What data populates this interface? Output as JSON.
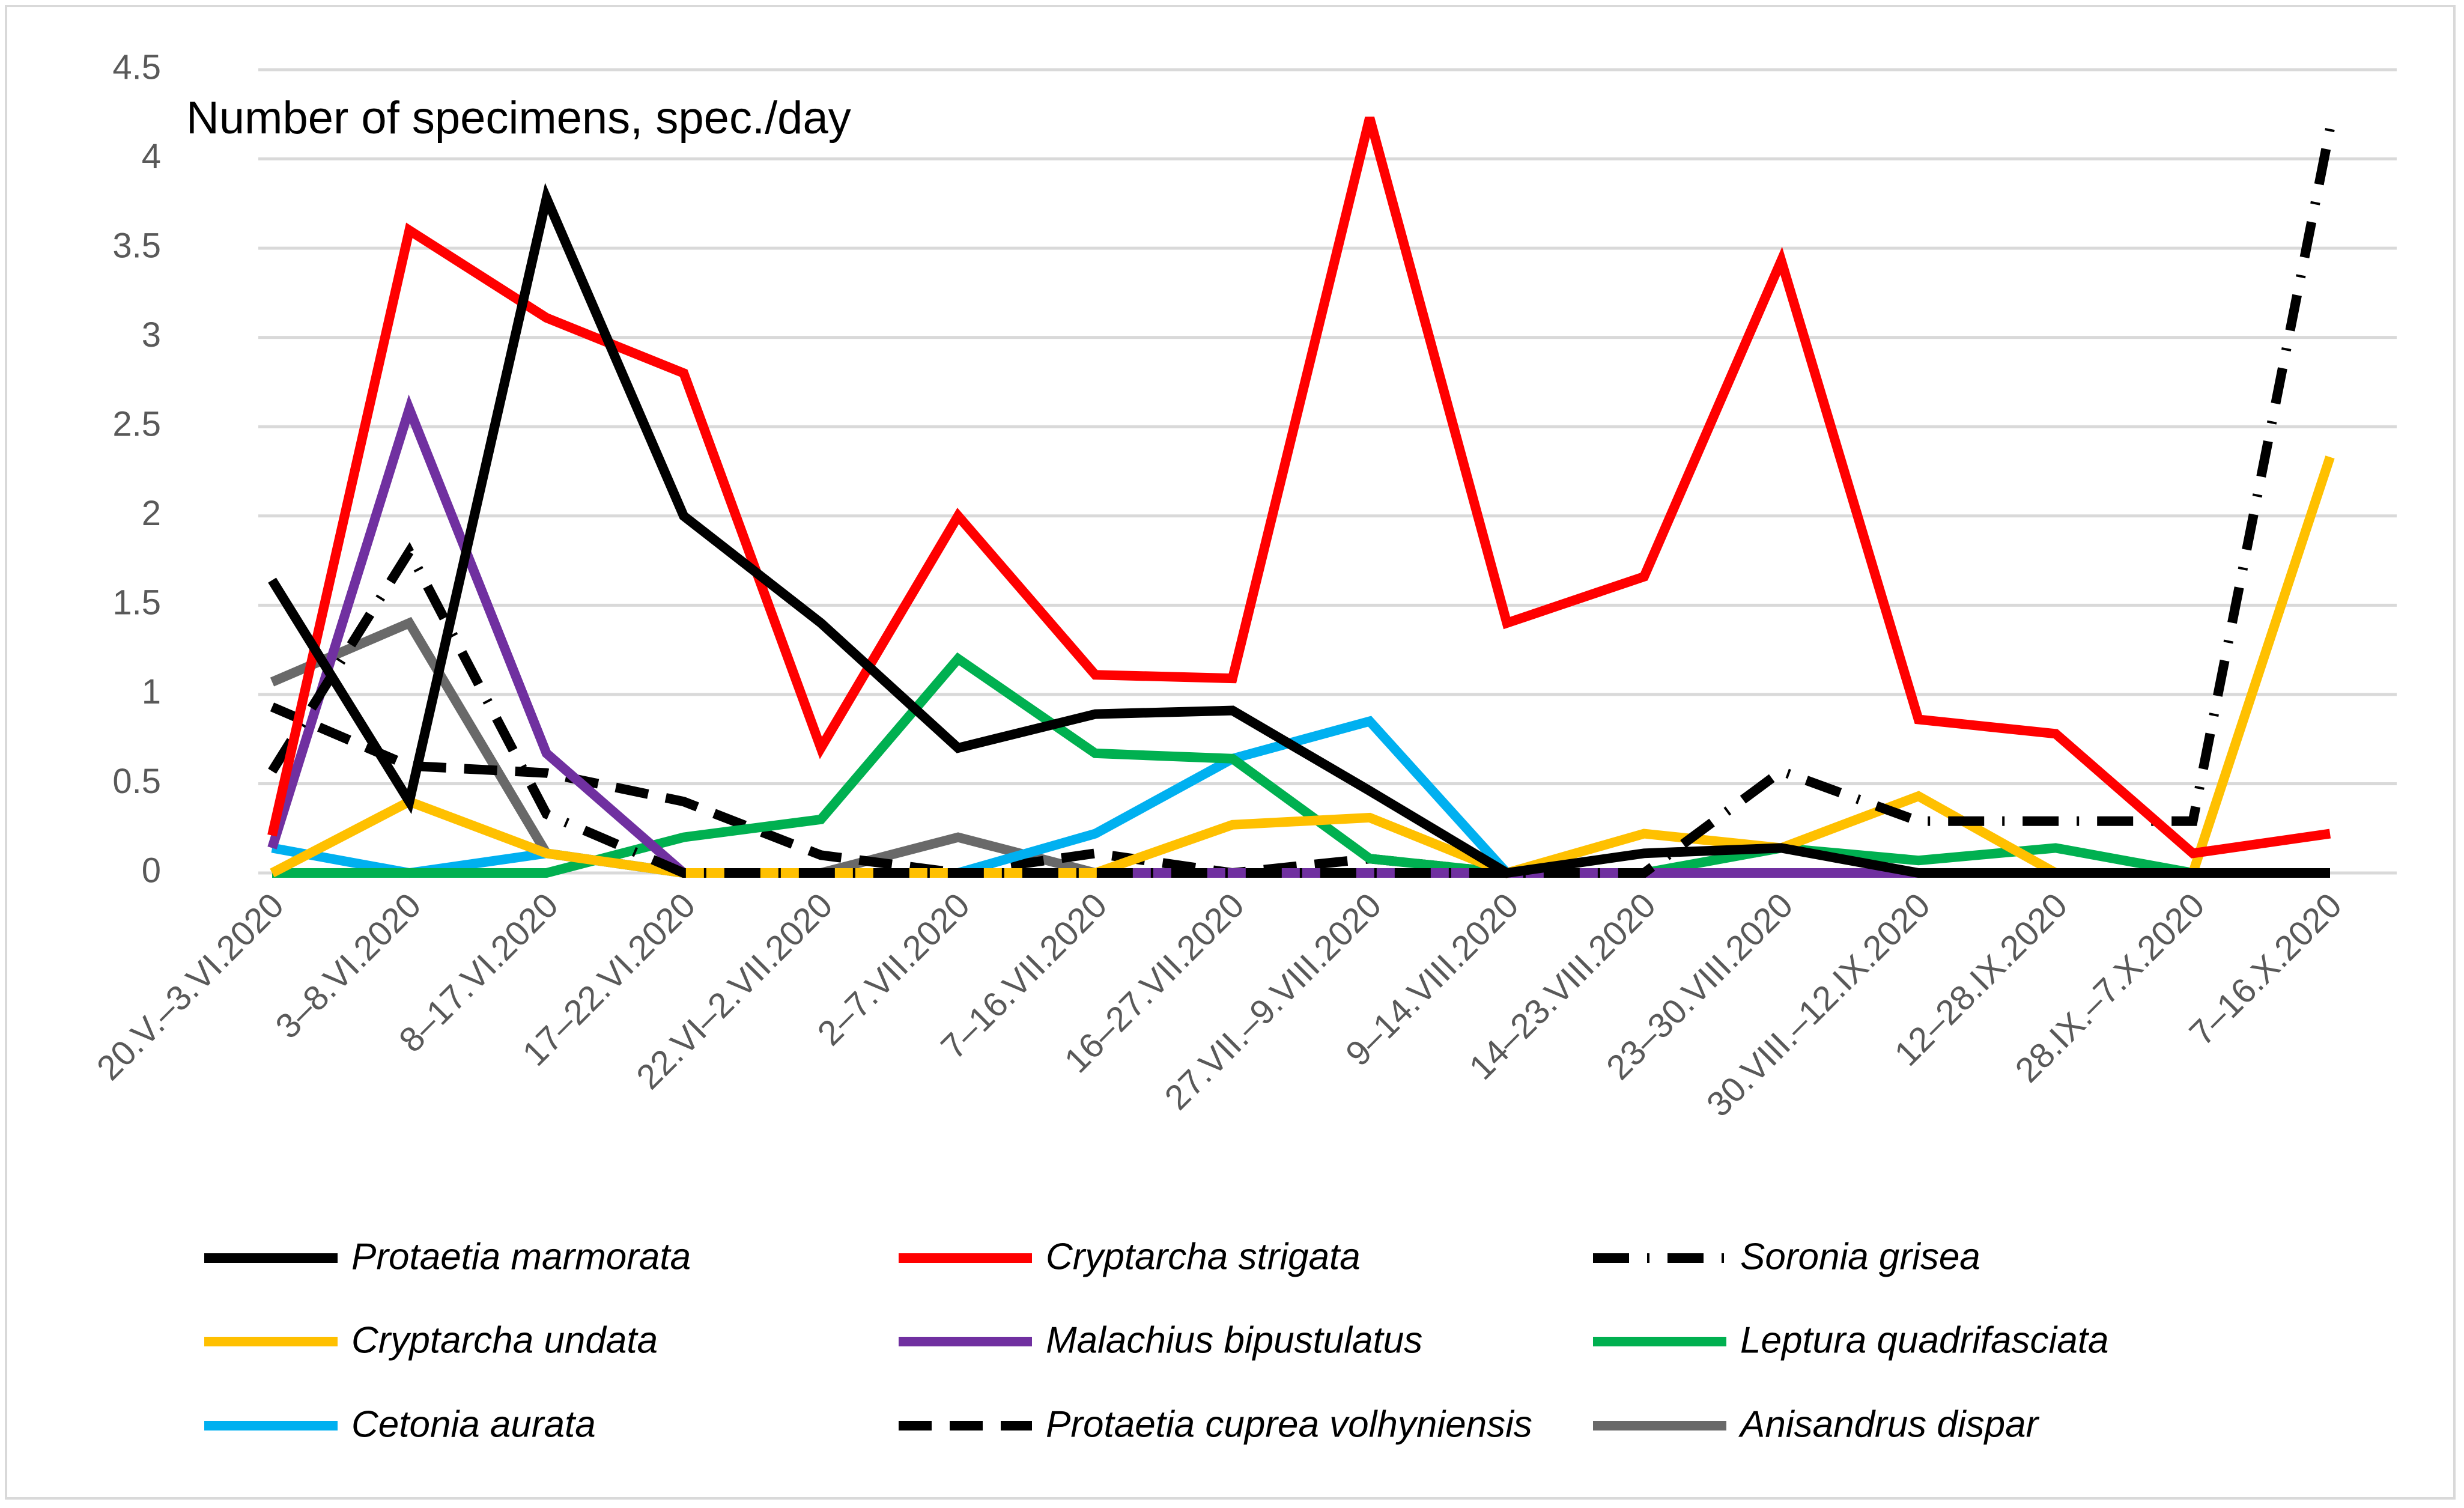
{
  "chart_data": {
    "type": "line",
    "title": "",
    "ylabel": "Number of specimens, spec./day",
    "xlabel": "",
    "ylim": [
      0,
      4.5
    ],
    "yticks": [
      "0",
      "0.5",
      "1",
      "1.5",
      "2",
      "2.5",
      "3",
      "3.5",
      "4",
      "4.5"
    ],
    "grid": true,
    "legend_position": "bottom",
    "categories": [
      "20.V.–3.VI.2020",
      "3–8.VI.2020",
      "8–17.VI.2020",
      "17–22.VI.2020",
      "22.VI–2.VII.2020",
      "2–7.VII.2020",
      "7–16.VII.2020",
      "16–27.VII.2020",
      "27.VII.–9.VIII.2020",
      "9–14.VIII.2020",
      "14–23.VIII.2020",
      "23–30.VIII.2020",
      "30.VIII.–12.IX.2020",
      "12–28.IX.2020",
      "28.IX.–7.X.2020",
      "7–16.X.2020"
    ],
    "series": [
      {
        "name": "Protaetia marmorata",
        "color": "#000000",
        "dash": "solid",
        "values": [
          1.64,
          0.4,
          3.78,
          2.0,
          1.4,
          0.7,
          0.89,
          0.91,
          0.46,
          0.0,
          0.11,
          0.14,
          0.0,
          0.0,
          0.0,
          0.0
        ]
      },
      {
        "name": "Cryptarcha strigata",
        "color": "#ff0000",
        "dash": "solid",
        "values": [
          0.21,
          3.6,
          3.11,
          2.8,
          0.7,
          2.0,
          1.11,
          1.09,
          4.23,
          1.4,
          1.66,
          3.43,
          0.86,
          0.78,
          0.11,
          0.22
        ]
      },
      {
        "name": "Soronia grisea",
        "color": "#000000",
        "dash": "dashdot",
        "values": [
          0.57,
          1.8,
          0.33,
          0.0,
          0.0,
          0.0,
          0.0,
          0.0,
          0.0,
          0.0,
          0.0,
          0.57,
          0.29,
          0.29,
          0.29,
          4.17
        ]
      },
      {
        "name": "Cryptarcha undata",
        "color": "#ffc000",
        "dash": "solid",
        "values": [
          0.0,
          0.4,
          0.11,
          0.0,
          0.0,
          0.0,
          0.0,
          0.27,
          0.31,
          0.0,
          0.22,
          0.14,
          0.43,
          0.0,
          0.0,
          2.33
        ]
      },
      {
        "name": "Malachius bipustulatus",
        "color": "#7030a0",
        "dash": "solid",
        "values": [
          0.14,
          2.6,
          0.67,
          0.0,
          0.0,
          0.0,
          0.0,
          0.0,
          0.0,
          0.0,
          0.0,
          0.0,
          0.0,
          0.0,
          0.0,
          0.0
        ]
      },
      {
        "name": "Leptura quadrifasciata",
        "color": "#00b050",
        "dash": "solid",
        "values": [
          0.0,
          0.0,
          0.0,
          0.2,
          0.3,
          1.2,
          0.67,
          0.64,
          0.08,
          0.0,
          0.0,
          0.14,
          0.07,
          0.14,
          0.0,
          0.0
        ]
      },
      {
        "name": "Cetonia aurata",
        "color": "#00b0f0",
        "dash": "solid",
        "values": [
          0.14,
          0.0,
          0.11,
          0.0,
          0.0,
          0.0,
          0.22,
          0.64,
          0.85,
          0.0,
          0.0,
          0.0,
          0.0,
          0.0,
          0.0,
          0.0
        ]
      },
      {
        "name": "Protaetia cuprea volhyniensis",
        "color": "#000000",
        "dash": "dashed",
        "values": [
          0.93,
          0.6,
          0.56,
          0.4,
          0.1,
          0.0,
          0.11,
          0.0,
          0.08,
          0.0,
          0.0,
          0.0,
          0.0,
          0.0,
          0.0,
          0.0
        ]
      },
      {
        "name": "Anisandrus dispar",
        "color": "#696969",
        "dash": "solid",
        "values": [
          1.07,
          1.4,
          0.11,
          0.0,
          0.0,
          0.2,
          0.0,
          0.0,
          0.0,
          0.0,
          0.0,
          0.0,
          0.0,
          0.0,
          0.0,
          0.0
        ]
      }
    ]
  }
}
